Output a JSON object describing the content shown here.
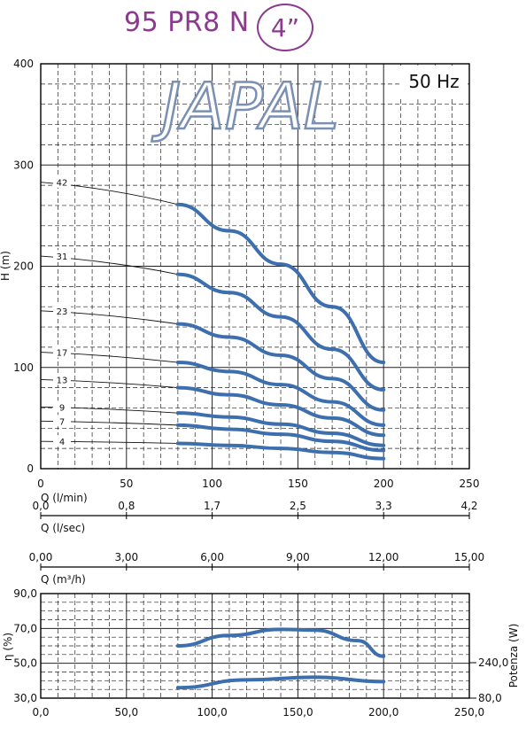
{
  "header": {
    "model": "95 PR8 N",
    "size": "4”"
  },
  "chart_data": [
    {
      "type": "line",
      "brand": "JAPAL",
      "freq_label": "50 Hz",
      "xlabel": "Q (l/min)",
      "ylabel": "H (m)",
      "xlim": [
        0,
        250
      ],
      "ylim": [
        0,
        400
      ],
      "x_ticks": [
        "0",
        "50",
        "100",
        "150",
        "200",
        "250"
      ],
      "y_ticks": [
        "0",
        "100",
        "200",
        "300",
        "400"
      ],
      "secondary_x_axes": [
        {
          "label": "Q (l/sec)",
          "ticks": [
            "0,0",
            "0,8",
            "1,7",
            "2,5",
            "3,3",
            "4,2"
          ]
        },
        {
          "label": "Q (m³/h)",
          "ticks": [
            "0,00",
            "3,00",
            "6,00",
            "9,00",
            "12,00",
            "15,00"
          ]
        }
      ],
      "series": [
        {
          "name": "42",
          "start": 283,
          "x": [
            80,
            110,
            140,
            170,
            200
          ],
          "y": [
            261,
            235,
            202,
            160,
            105
          ]
        },
        {
          "name": "31",
          "start": 210,
          "x": [
            80,
            110,
            140,
            170,
            200
          ],
          "y": [
            192,
            174,
            150,
            118,
            78
          ]
        },
        {
          "name": "23",
          "start": 156,
          "x": [
            80,
            110,
            140,
            170,
            200
          ],
          "y": [
            143,
            130,
            112,
            89,
            58
          ]
        },
        {
          "name": "17",
          "start": 115,
          "x": [
            80,
            110,
            140,
            170,
            200
          ],
          "y": [
            105,
            96,
            83,
            66,
            43
          ]
        },
        {
          "name": "13",
          "start": 88,
          "x": [
            80,
            110,
            140,
            170,
            200
          ],
          "y": [
            80,
            73,
            63,
            50,
            33
          ]
        },
        {
          "name": "9",
          "start": 61,
          "x": [
            80,
            110,
            140,
            170,
            200
          ],
          "y": [
            55,
            51,
            44,
            35,
            23
          ]
        },
        {
          "name": "7",
          "start": 47,
          "x": [
            80,
            110,
            140,
            170,
            200
          ],
          "y": [
            43,
            39,
            34,
            27,
            18
          ]
        },
        {
          "name": "4",
          "start": 27,
          "x": [
            80,
            110,
            140,
            170,
            200
          ],
          "y": [
            25,
            23,
            20,
            16,
            10
          ]
        }
      ]
    },
    {
      "type": "line",
      "xlabel": "",
      "ylabel": "η (%)",
      "y2label": "Potenza (W)",
      "xlim": [
        0,
        250
      ],
      "ylim": [
        30,
        90
      ],
      "x_ticks": [
        "0,0",
        "50,0",
        "100,0",
        "150,0",
        "200,0",
        "250,0"
      ],
      "y_ticks": [
        "30,0",
        "50,0",
        "70,0",
        "90,0"
      ],
      "y2_ticks": [
        "80,0",
        "240,0"
      ],
      "series": [
        {
          "name": "efficiency",
          "x": [
            80,
            110,
            140,
            160,
            185,
            200
          ],
          "y": [
            60,
            66,
            69.5,
            69,
            63,
            54
          ]
        },
        {
          "name": "power",
          "x": [
            80,
            120,
            160,
            200
          ],
          "y": [
            36,
            40.5,
            42,
            39.5
          ]
        }
      ]
    }
  ]
}
